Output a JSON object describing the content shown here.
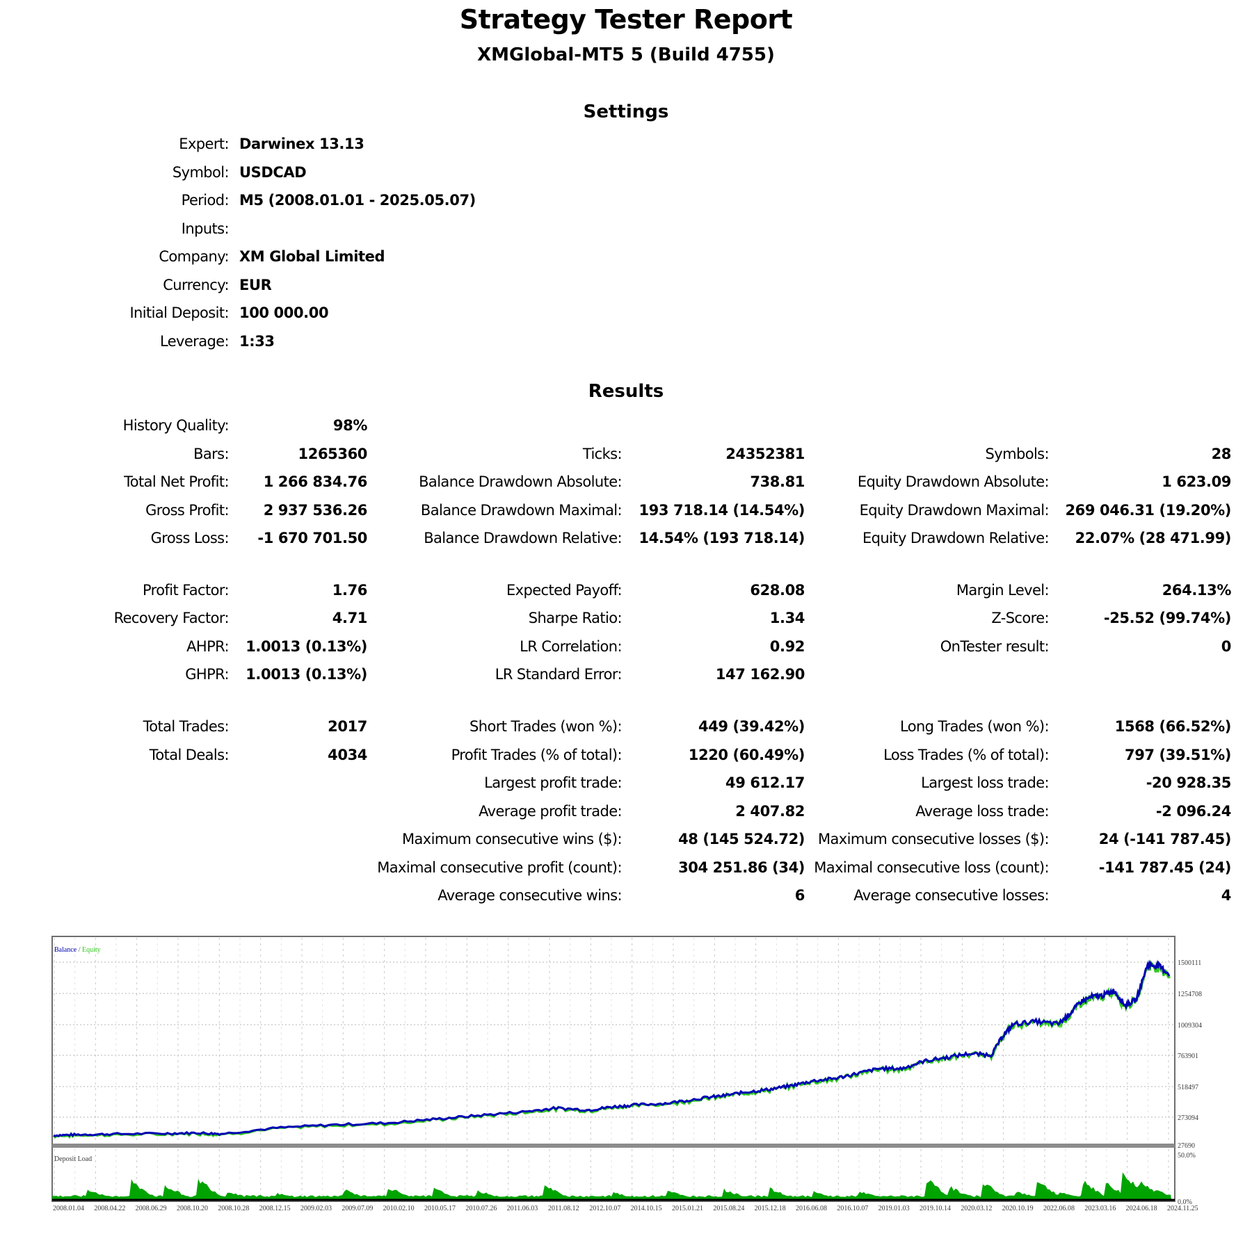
{
  "header": {
    "title": "Strategy Tester Report",
    "subtitle": "XMGlobal-MT5 5 (Build 4755)"
  },
  "settings": {
    "heading": "Settings",
    "rows": [
      {
        "label": "Expert:",
        "value": "Darwinex 13.13"
      },
      {
        "label": "Symbol:",
        "value": "USDCAD"
      },
      {
        "label": "Period:",
        "value": "M5 (2008.01.01 - 2025.05.07)"
      },
      {
        "label": "Inputs:",
        "value": ""
      },
      {
        "label": "Company:",
        "value": "XM Global Limited"
      },
      {
        "label": "Currency:",
        "value": "EUR"
      },
      {
        "label": "Initial Deposit:",
        "value": "100 000.00"
      },
      {
        "label": "Leverage:",
        "value": "1:33"
      }
    ]
  },
  "results": {
    "heading": "Results",
    "col1": [
      {
        "label": "History Quality:",
        "value": "98%"
      },
      {
        "label": "Bars:",
        "value": "1265360"
      },
      {
        "label": "Total Net Profit:",
        "value": "1 266 834.76"
      },
      {
        "label": "Gross Profit:",
        "value": "2 937 536.26"
      },
      {
        "label": "Gross Loss:",
        "value": "-1 670 701.50"
      },
      {
        "label": "Profit Factor:",
        "value": "1.76"
      },
      {
        "label": "Recovery Factor:",
        "value": "4.71"
      },
      {
        "label": "AHPR:",
        "value": "1.0013 (0.13%)"
      },
      {
        "label": "GHPR:",
        "value": "1.0013 (0.13%)"
      },
      {
        "label": "Total Trades:",
        "value": "2017"
      },
      {
        "label": "Total Deals:",
        "value": "4034"
      }
    ],
    "col2": [
      {
        "label": "Ticks:",
        "value": "24352381"
      },
      {
        "label": "Balance Drawdown Absolute:",
        "value": "738.81"
      },
      {
        "label": "Balance Drawdown Maximal:",
        "value": "193 718.14 (14.54%)"
      },
      {
        "label": "Balance Drawdown Relative:",
        "value": "14.54% (193 718.14)"
      },
      {
        "label": "Expected Payoff:",
        "value": "628.08"
      },
      {
        "label": "Sharpe Ratio:",
        "value": "1.34"
      },
      {
        "label": "LR Correlation:",
        "value": "0.92"
      },
      {
        "label": "LR Standard Error:",
        "value": "147 162.90"
      },
      {
        "label": "Short Trades (won %):",
        "value": "449 (39.42%)"
      },
      {
        "label": "Profit Trades (% of total):",
        "value": "1220 (60.49%)"
      },
      {
        "label": "Largest profit trade:",
        "value": "49 612.17"
      },
      {
        "label": "Average profit trade:",
        "value": "2 407.82"
      },
      {
        "label": "Maximum consecutive wins ($):",
        "value": "48 (145 524.72)"
      },
      {
        "label": "Maximal consecutive profit (count):",
        "value": "304 251.86 (34)"
      },
      {
        "label": "Average consecutive wins:",
        "value": "6"
      }
    ],
    "col3": [
      {
        "label": "Symbols:",
        "value": "28"
      },
      {
        "label": "Equity Drawdown Absolute:",
        "value": "1 623.09"
      },
      {
        "label": "Equity Drawdown Maximal:",
        "value": "269 046.31 (19.20%)"
      },
      {
        "label": "Equity Drawdown Relative:",
        "value": "22.07% (28 471.99)"
      },
      {
        "label": "Margin Level:",
        "value": "264.13%"
      },
      {
        "label": "Z-Score:",
        "value": "-25.52 (99.74%)"
      },
      {
        "label": "OnTester result:",
        "value": "0"
      },
      {
        "label": "Long Trades (won %):",
        "value": "1568 (66.52%)"
      },
      {
        "label": "Loss Trades (% of total):",
        "value": "797 (39.51%)"
      },
      {
        "label": "Largest loss trade:",
        "value": "-20 928.35"
      },
      {
        "label": "Average loss trade:",
        "value": "-2 096.24"
      },
      {
        "label": "Maximum consecutive losses ($):",
        "value": "24 (-141 787.45)"
      },
      {
        "label": "Maximal consecutive loss (count):",
        "value": "-141 787.45 (24)"
      },
      {
        "label": "Average consecutive losses:",
        "value": "4"
      }
    ]
  },
  "chart_data": {
    "type": "line",
    "title": "",
    "legend": [
      {
        "name": "Balance",
        "color": "#0000b4"
      },
      {
        "name": "Equity",
        "color": "#32c81e"
      }
    ],
    "legend_separator": " / ",
    "xlabel": "",
    "ylabel": "",
    "x_tick_labels": [
      "2008.01.04",
      "2008.04.22",
      "2008.06.29",
      "2008.10.20",
      "2008.10.28",
      "2008.12.15",
      "2009.02.03",
      "2009.07.09",
      "2010.02.10",
      "2010.05.17",
      "2010.07.26",
      "2011.06.03",
      "2011.08.12",
      "2012.10.07",
      "2014.10.15",
      "2015.01.21",
      "2015.08.24",
      "2015.12.18",
      "2016.06.08",
      "2016.10.07",
      "2019.01.03",
      "2019.10.14",
      "2020.03.12",
      "2020.10.19",
      "2022.06.08",
      "2023.03.16",
      "2024.06.18",
      "2024.11.25"
    ],
    "y_tick_labels": [
      "1500111",
      "1254708",
      "1009304",
      "763901",
      "518497",
      "273094",
      "27690"
    ],
    "ylim": [
      27690,
      1622813
    ],
    "grid": true,
    "legend_position": "top-left",
    "series": [
      {
        "name": "Balance",
        "x_frac": [
          0,
          0.02,
          0.05,
          0.1,
          0.13,
          0.15,
          0.2,
          0.25,
          0.3,
          0.34,
          0.38,
          0.42,
          0.45,
          0.48,
          0.5,
          0.52,
          0.55,
          0.58,
          0.6,
          0.62,
          0.64,
          0.66,
          0.68,
          0.7,
          0.72,
          0.74,
          0.76,
          0.78,
          0.8,
          0.82,
          0.84,
          0.85,
          0.86,
          0.88,
          0.9,
          0.91,
          0.92,
          0.93,
          0.94,
          0.95,
          0.96,
          0.97,
          0.98,
          0.99,
          1.0
        ],
        "values": [
          100000,
          105000,
          110000,
          115000,
          120000,
          112000,
          160000,
          185000,
          200000,
          230000,
          260000,
          290000,
          320000,
          305000,
          330000,
          345000,
          360000,
          400000,
          420000,
          450000,
          470000,
          500000,
          540000,
          560000,
          600000,
          640000,
          640000,
          700000,
          730000,
          760000,
          750000,
          900000,
          1000000,
          1020000,
          1000000,
          1080000,
          1180000,
          1220000,
          1230000,
          1270000,
          1150000,
          1200000,
          1480000,
          1470000,
          1400000
        ]
      },
      {
        "name": "Deposit Load",
        "unit": "%",
        "ylim": [
          0,
          50
        ],
        "y_tick_labels": [
          "50.0%",
          "0.0%"
        ],
        "approx_peak": 35
      }
    ],
    "lower_panel_label": "Deposit Load"
  }
}
